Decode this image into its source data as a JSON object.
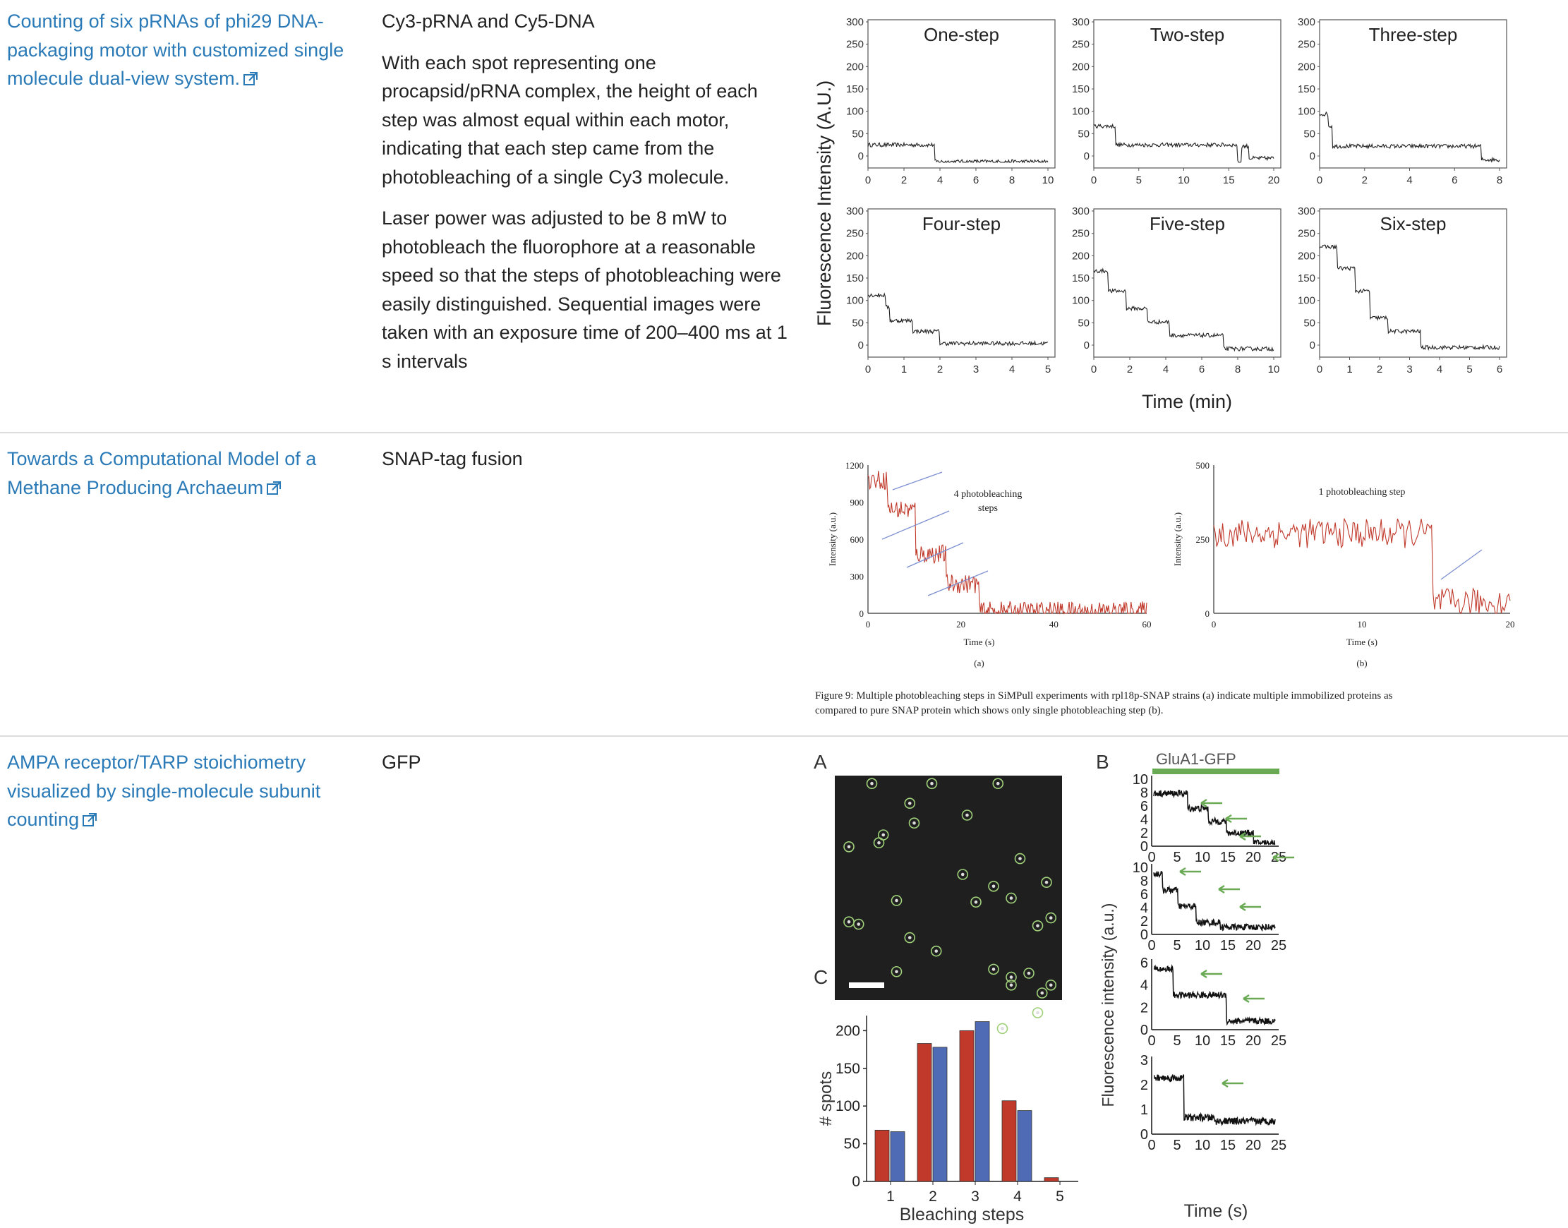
{
  "rows": [
    {
      "title": "Counting of six pRNAs of phi29 DNA-packaging motor with customized single molecule dual-view system.",
      "method": "Cy3-pRNA and Cy5-DNA",
      "paragraphs": [
        "With each spot representing one procapsid/pRNA complex, the height of each step was almost equal within each motor, indicating that each step came from the photobleaching of a single Cy3 molecule.",
        "Laser power was adjusted to be 8 mW to photobleach the fluorophore at a reasonable speed so that the steps of photobleaching were easily distinguished. Sequential images were taken with an exposure time of 200–400 ms at 1 s intervals"
      ]
    },
    {
      "title": "Towards a Computational Model of a Methane Producing Archaeum",
      "method": "SNAP-tag fusion",
      "paragraphs": []
    },
    {
      "title": "AMPA receptor/TARP stoichiometry visualized by single-molecule subunit counting",
      "method": "GFP",
      "paragraphs": []
    }
  ],
  "figure1": {
    "ylabel": "Fluorescence Intensity (A.U.)",
    "xlabel": "Time (min)",
    "panels": [
      {
        "title": "One-step",
        "xticks": [
          "0",
          "2",
          "4",
          "6",
          "8",
          "10"
        ]
      },
      {
        "title": "Two-step",
        "xticks": [
          "0",
          "5",
          "10",
          "15",
          "20"
        ]
      },
      {
        "title": "Three-step",
        "xticks": [
          "0",
          "2",
          "4",
          "6",
          "8"
        ]
      },
      {
        "title": "Four-step",
        "xticks": [
          "0",
          "1",
          "2",
          "3",
          "4",
          "5"
        ]
      },
      {
        "title": "Five-step",
        "xticks": [
          "0",
          "2",
          "4",
          "6",
          "8",
          "10"
        ]
      },
      {
        "title": "Six-step",
        "xticks": [
          "0",
          "1",
          "2",
          "3",
          "4",
          "5",
          "6"
        ]
      }
    ],
    "yticks": [
      "300",
      "250",
      "200",
      "150",
      "100",
      "50",
      "0"
    ]
  },
  "figure2": {
    "a_ylabel": "Intensity (a.u.)",
    "a_xlabel": "Time (s)",
    "a_yticks": [
      "1200",
      "900",
      "600",
      "300",
      "0"
    ],
    "a_xticks": [
      "0",
      "20",
      "40",
      "60"
    ],
    "a_annot": [
      "4 photobleaching",
      "steps"
    ],
    "a_sub": "(a)",
    "b_ylabel": "Intensity (a.u.)",
    "b_xlabel": "Time (s)",
    "b_yticks": [
      "500",
      "250",
      "0"
    ],
    "b_xticks": [
      "0",
      "10",
      "20"
    ],
    "b_annot": "1 photobleaching step",
    "b_sub": "(b)",
    "caption_line1": "Figure 9: Multiple photobleaching steps in SiMPull experiments with rpl18p-SNAP strains (a) indicate multiple immobilized proteins as",
    "caption_line2": "compared to pure SNAP protein which shows only single photobleaching step (b)."
  },
  "figure3": {
    "label_a": "A",
    "label_b": "B",
    "label_c": "C",
    "glua_label": "GluA1-GFP",
    "b_ylabel": "Fluorescence intensity (a.u.)",
    "b_xlabel": "Time (s)",
    "b_xticks": [
      "0",
      "5",
      "10",
      "15",
      "20",
      "25"
    ],
    "b_panels_yticks": [
      [
        "10",
        "8",
        "6",
        "4",
        "2",
        "0"
      ],
      [
        "10",
        "8",
        "6",
        "4",
        "2",
        "0"
      ],
      [
        "6",
        "4",
        "2",
        "0"
      ],
      [
        "3",
        "2",
        "1",
        "0"
      ]
    ],
    "c_ylabel": "# spots",
    "c_xlabel": "Bleaching steps",
    "c_yticks": [
      "200",
      "150",
      "100",
      "50",
      "0"
    ]
  },
  "chart_data": [
    {
      "type": "bar",
      "title": "",
      "xlabel": "Bleaching steps",
      "ylabel": "# spots",
      "categories": [
        "1",
        "2",
        "3",
        "4",
        "5"
      ],
      "ylim": [
        0,
        220
      ],
      "series": [
        {
          "values": [
            68,
            183,
            200,
            107,
            5
          ]
        },
        {
          "values": [
            66,
            178,
            212,
            94,
            0
          ]
        }
      ],
      "colors": [
        "#c0392b",
        "#4f6bb5"
      ]
    }
  ],
  "colors": {
    "link": "#2a7ab8",
    "separator": "#dcdcdc",
    "trace_red": "#c0392b",
    "arrow_blue": "#7c8fd0",
    "arrow_green": "#6aaa55",
    "bar_red": "#c0392b",
    "bar_blue": "#4f6bb5"
  }
}
